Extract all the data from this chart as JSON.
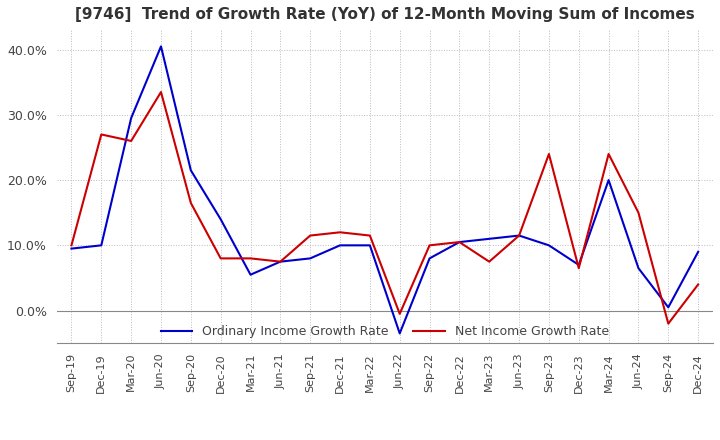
{
  "title": "[9746]  Trend of Growth Rate (YoY) of 12-Month Moving Sum of Incomes",
  "xlabel": "",
  "ylabel": "",
  "ylim": [
    -0.05,
    0.43
  ],
  "yticks": [
    0.0,
    0.1,
    0.2,
    0.3,
    0.4
  ],
  "background_color": "#ffffff",
  "grid_color": "#bbbbbb",
  "ordinary_color": "#0000cc",
  "net_color": "#cc0000",
  "ordinary_label": "Ordinary Income Growth Rate",
  "net_label": "Net Income Growth Rate",
  "x_labels": [
    "Sep-19",
    "Dec-19",
    "Mar-20",
    "Jun-20",
    "Sep-20",
    "Dec-20",
    "Mar-21",
    "Jun-21",
    "Sep-21",
    "Dec-21",
    "Mar-22",
    "Jun-22",
    "Sep-22",
    "Dec-22",
    "Mar-23",
    "Jun-23",
    "Sep-23",
    "Dec-23",
    "Mar-24",
    "Jun-24",
    "Sep-24",
    "Dec-24"
  ],
  "ordinary_income": [
    0.095,
    0.1,
    0.295,
    0.405,
    0.215,
    0.14,
    0.055,
    0.075,
    0.08,
    0.1,
    0.1,
    -0.035,
    0.08,
    0.105,
    0.11,
    0.115,
    0.1,
    0.07,
    0.2,
    0.065,
    0.005,
    0.09
  ],
  "net_income": [
    0.1,
    0.27,
    0.26,
    0.335,
    0.165,
    0.08,
    0.08,
    0.075,
    0.115,
    0.12,
    0.115,
    -0.005,
    0.1,
    0.105,
    0.075,
    0.115,
    0.24,
    0.065,
    0.24,
    0.15,
    -0.02,
    0.04
  ]
}
